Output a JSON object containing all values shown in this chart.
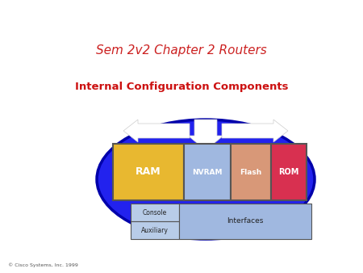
{
  "title": "Sem 2v2 Chapter 2 Routers",
  "title_color": "#cc2222",
  "title_fontsize": 11,
  "subtitle": "Internal Configuration Components",
  "subtitle_color": "#cc1111",
  "subtitle_fontsize": 9.5,
  "copyright": "© Cisco Systems, Inc. 1999",
  "background_color": "#ffffff",
  "ellipse_color": "#2222ee",
  "ellipse_edge_color": "#0000aa",
  "ram_color": "#e8b830",
  "nvram_color": "#a0b8e0",
  "flash_color": "#d89878",
  "rom_color": "#d83050",
  "console_color": "#b8cce8",
  "auxiliary_color": "#b8cce8",
  "interfaces_color": "#a0b8e0",
  "box_border": "#555555",
  "box_text_color": "#ffffff",
  "arrow_color": "#ffffff"
}
